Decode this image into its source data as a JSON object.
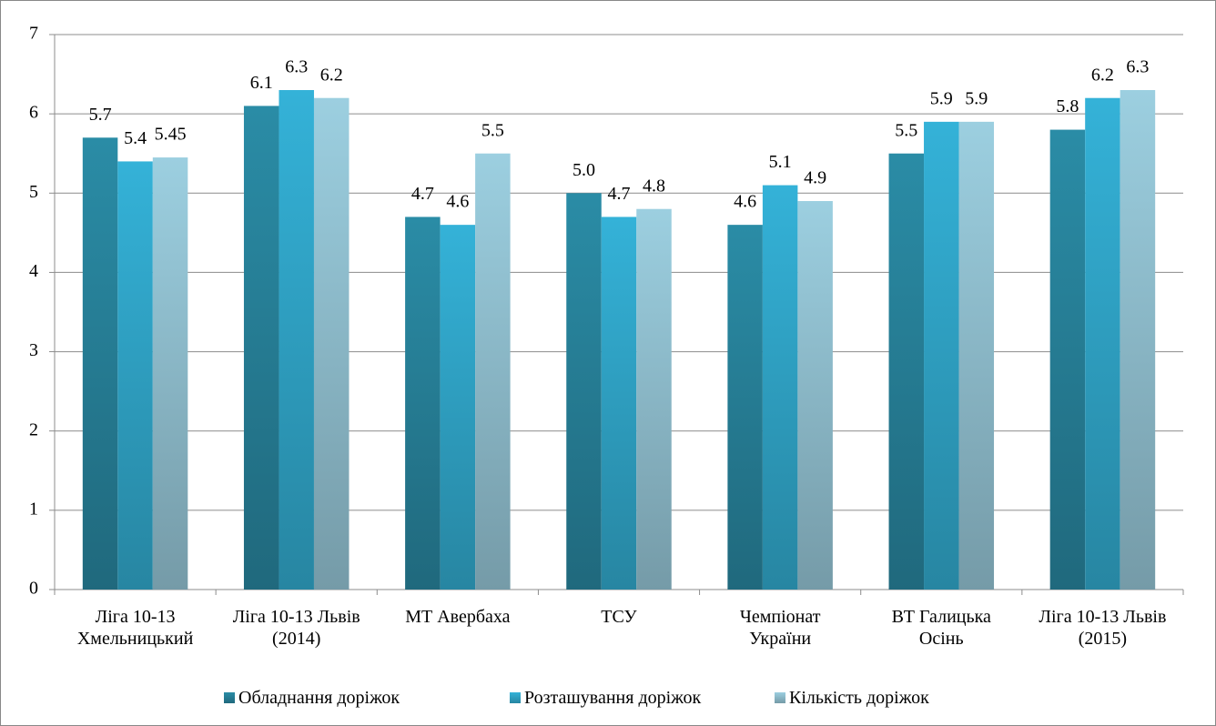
{
  "chart_data": {
    "type": "bar",
    "categories": [
      "Ліга 10-13 Хмельницький",
      "Ліга 10-13 Львів (2014)",
      "МТ Авербаха",
      "ТСУ",
      "Чемпіонат України",
      "ВТ Галицька Осінь",
      "Ліга 10-13 Львів (2015)"
    ],
    "series": [
      {
        "name": "Обладнання доріжок",
        "color": "#2a8ca6",
        "values": [
          5.7,
          6.1,
          4.7,
          5.0,
          4.6,
          5.5,
          5.8
        ],
        "value_labels": [
          "5.7",
          "6.1",
          "4.7",
          "5.0",
          "4.6",
          "5.5",
          "5.8"
        ]
      },
      {
        "name": "Розташування доріжок",
        "color": "#34b2d8",
        "values": [
          5.4,
          6.3,
          4.6,
          4.7,
          5.1,
          5.9,
          6.2
        ]
      },
      {
        "name": "Кількість доріжок",
        "color": "#9ccfe0",
        "values": [
          5.45,
          6.2,
          5.5,
          4.8,
          4.9,
          5.9,
          6.3
        ]
      }
    ],
    "ylim": [
      0,
      7
    ],
    "yticks": [
      0,
      1,
      2,
      3,
      4,
      5,
      6,
      7
    ],
    "grid": true,
    "legend": "bottom"
  }
}
